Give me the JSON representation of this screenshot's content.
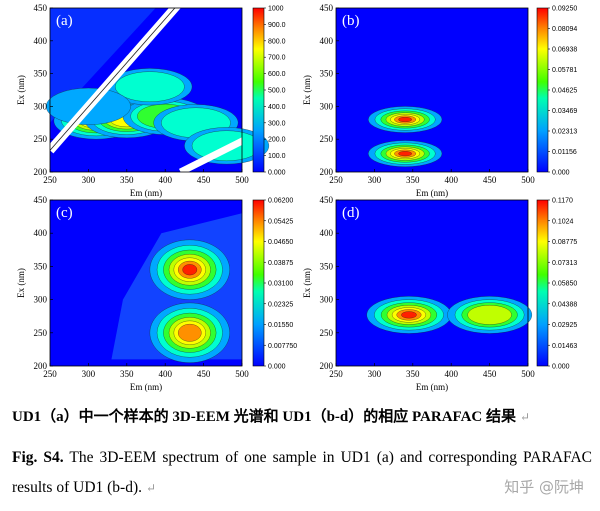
{
  "chart_data": [
    {
      "type": "heatmap",
      "panel_label": "(a)",
      "xlabel": "Em (nm)",
      "ylabel": "Ex (nm)",
      "xlim": [
        250,
        500
      ],
      "ylim": [
        200,
        450
      ],
      "xticks": [
        "250",
        "300",
        "350",
        "400",
        "450",
        "500"
      ],
      "yticks": [
        "200",
        "250",
        "300",
        "350",
        "400",
        "450"
      ],
      "colorbar_ticks": [
        "0.000",
        "100.0",
        "200.0",
        "300.0",
        "400.0",
        "500.0",
        "600.0",
        "700.0",
        "800.0",
        "900.0",
        "1000"
      ],
      "colorbar_range": [
        0,
        1000
      ],
      "peaks": [
        {
          "em": 310,
          "ex": 278,
          "intensity": 760
        },
        {
          "em": 350,
          "ex": 280,
          "intensity": 700
        },
        {
          "em": 400,
          "ex": 285,
          "intensity": 560
        },
        {
          "em": 380,
          "ex": 330,
          "intensity": 380
        },
        {
          "em": 440,
          "ex": 275,
          "intensity": 380
        },
        {
          "em": 300,
          "ex": 300,
          "intensity": 220
        },
        {
          "em": 480,
          "ex": 240,
          "intensity": 260
        }
      ]
    },
    {
      "type": "heatmap",
      "panel_label": "(b)",
      "xlabel": "Em (nm)",
      "ylabel": "Ex (nm)",
      "xlim": [
        250,
        500
      ],
      "ylim": [
        200,
        450
      ],
      "xticks": [
        "250",
        "300",
        "350",
        "400",
        "450",
        "500"
      ],
      "yticks": [
        "200",
        "250",
        "300",
        "350",
        "400",
        "450"
      ],
      "colorbar_ticks": [
        "0.000",
        "0.01156",
        "0.02313",
        "0.03469",
        "0.04625",
        "0.05781",
        "0.06938",
        "0.08094",
        "0.09250"
      ],
      "colorbar_range": [
        0,
        0.0925
      ],
      "peaks": [
        {
          "em": 340,
          "ex": 280,
          "intensity": 0.092
        },
        {
          "em": 340,
          "ex": 228,
          "intensity": 0.088
        }
      ]
    },
    {
      "type": "heatmap",
      "panel_label": "(c)",
      "xlabel": "Em (nm)",
      "ylabel": "Ex (nm)",
      "xlim": [
        250,
        500
      ],
      "ylim": [
        200,
        450
      ],
      "xticks": [
        "250",
        "300",
        "350",
        "400",
        "450",
        "500"
      ],
      "yticks": [
        "200",
        "250",
        "300",
        "350",
        "400",
        "450"
      ],
      "colorbar_ticks": [
        "0.000",
        "0.007750",
        "0.01550",
        "0.02325",
        "0.03100",
        "0.03875",
        "0.04650",
        "0.05425",
        "0.06200"
      ],
      "colorbar_range": [
        0,
        0.062
      ],
      "peaks": [
        {
          "em": 432,
          "ex": 345,
          "intensity": 0.062
        },
        {
          "em": 432,
          "ex": 250,
          "intensity": 0.054
        }
      ]
    },
    {
      "type": "heatmap",
      "panel_label": "(d)",
      "xlabel": "Em (nm)",
      "ylabel": "Ex (nm)",
      "xlim": [
        250,
        500
      ],
      "ylim": [
        200,
        450
      ],
      "xticks": [
        "250",
        "300",
        "350",
        "400",
        "450",
        "500"
      ],
      "yticks": [
        "200",
        "250",
        "300",
        "350",
        "400",
        "450"
      ],
      "colorbar_ticks": [
        "0.000",
        "0.01463",
        "0.02925",
        "0.04388",
        "0.05850",
        "0.07313",
        "0.08775",
        "0.1024",
        "0.1170"
      ],
      "colorbar_range": [
        0,
        0.117
      ],
      "peaks": [
        {
          "em": 345,
          "ex": 277,
          "intensity": 0.115
        },
        {
          "em": 450,
          "ex": 277,
          "intensity": 0.08
        }
      ]
    }
  ],
  "caption": {
    "zh": "UD1（a）中一个样本的 3D-EEM 光谱和 UD1（b-d）的相应 PARAFAC 结果",
    "en_label": "Fig. S4.",
    "en_text": "The 3D-EEM spectrum of one sample in UD1 (a) and corresponding PARAFAC results of UD1 (b-d).",
    "return_mark": "↵"
  },
  "watermark": "知乎 @阮坤",
  "colors": {
    "low": "#0000ff",
    "mid": "#00ff00",
    "high": "#ff0000"
  }
}
